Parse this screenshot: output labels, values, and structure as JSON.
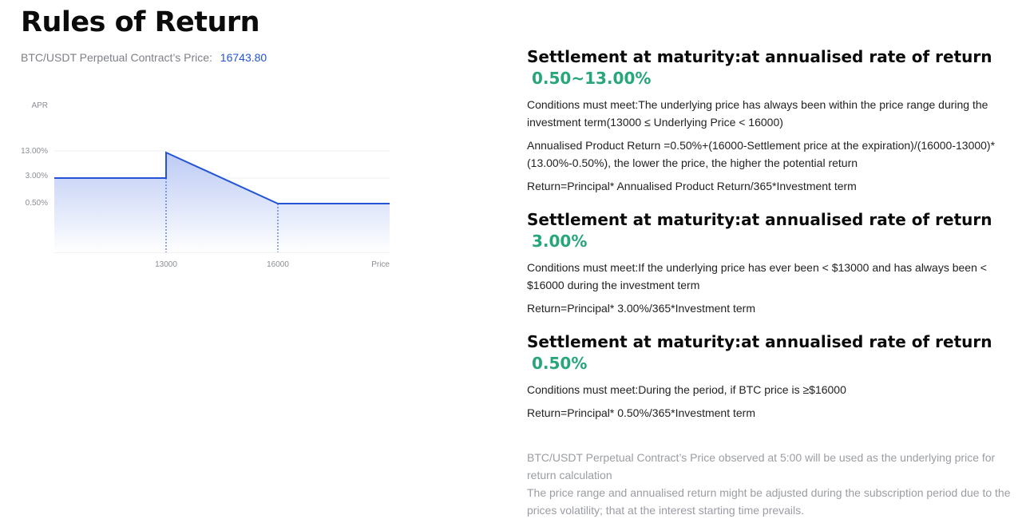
{
  "page": {
    "title": "Rules of Return",
    "price_label": "BTC/USDT Perpetual Contract’s Price:",
    "price_value": "16743.80"
  },
  "chart": {
    "y_axis_label": "APR",
    "x_axis_label": "Price",
    "y_ticks": [
      "13.00%",
      "3.00%",
      "0.50%"
    ],
    "x_ticks": [
      "13000",
      "16000"
    ],
    "line_color": "#2354d6",
    "fill_color": "#c9d5f7"
  },
  "chart_data": {
    "type": "area",
    "xlabel": "Price",
    "ylabel": "APR",
    "x_ticks": [
      13000,
      16000
    ],
    "y_ticks": [
      "13.00%",
      "3.00%",
      "0.50%"
    ],
    "segments": [
      {
        "from": null,
        "to": 13000,
        "apr": 3.0
      },
      {
        "from": 13000,
        "to": 16000,
        "apr_start": 13.0,
        "apr_end": 0.5
      },
      {
        "from": 16000,
        "to": null,
        "apr": 0.5
      }
    ],
    "grid": true
  },
  "sections": [
    {
      "title": "Settlement at maturity:at annualised rate of return",
      "rate": "0.50~13.00%",
      "paragraphs": [
        "Conditions must meet:The underlying price has always been within the price range during the investment term(13000 ≤ Underlying Price < 16000)",
        "Annualised Product Return =0.50%+(16000-Settlement price at the expiration)/(16000-13000)*(13.00%-0.50%), the lower the price, the higher the potential return",
        "Return=Principal* Annualised Product Return/365*Investment term"
      ]
    },
    {
      "title": "Settlement at maturity:at annualised rate of return",
      "rate": "3.00%",
      "paragraphs": [
        "Conditions must meet:If the underlying price has ever been < $13000 and has always been < $16000 during the investment term",
        "Return=Principal* 3.00%/365*Investment term"
      ]
    },
    {
      "title": "Settlement at maturity:at annualised rate of return",
      "rate": "0.50%",
      "paragraphs": [
        "Conditions must meet:During the period, if BTC price is ≥$16000",
        "Return=Principal* 0.50%/365*Investment term"
      ]
    }
  ],
  "notes": [
    "BTC/USDT Perpetual Contract’s Price observed at 5:00 will be used as the underlying price for return calculation",
    "The price range and annualised return might be adjusted during the subscription period due to the prices volatility; that at the interest starting time prevails."
  ]
}
